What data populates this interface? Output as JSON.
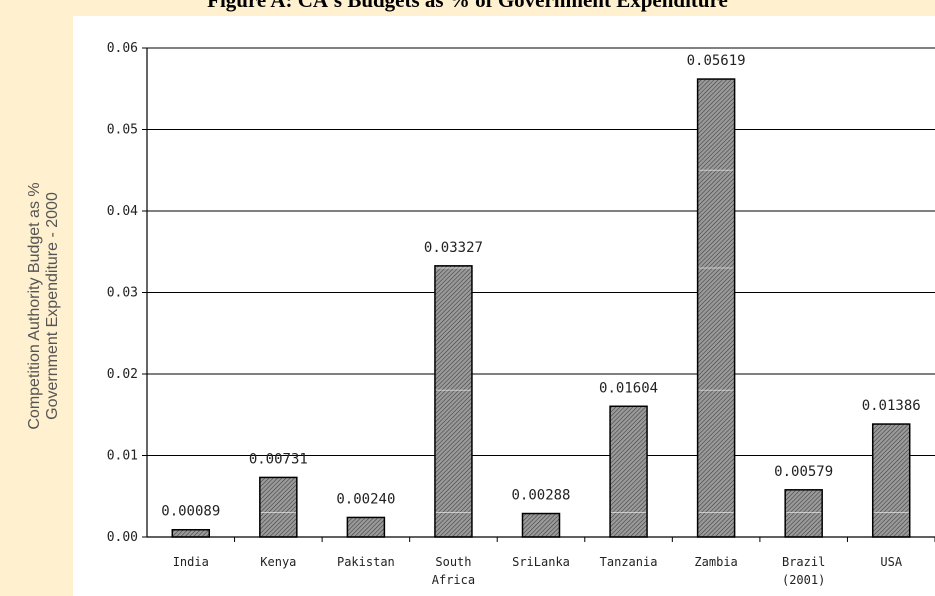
{
  "chart_data": {
    "type": "bar",
    "title": "Figure A: CA's Budgets as % of Government Expenditure",
    "ylabel_lines": [
      "Competition Authority Budget as %",
      "Government Expenditure - 2000"
    ],
    "xlabel": "",
    "categories": [
      [
        "India"
      ],
      [
        "Kenya"
      ],
      [
        "Pakistan"
      ],
      [
        "South",
        "Africa"
      ],
      [
        "SriLanka"
      ],
      [
        "Tanzania"
      ],
      [
        "Zambia"
      ],
      [
        "Brazil",
        "(2001)"
      ],
      [
        "USA"
      ]
    ],
    "values": [
      0.00089,
      0.00731,
      0.0024,
      0.03327,
      0.00288,
      0.01604,
      0.05619,
      0.00579,
      0.01386
    ],
    "data_labels": [
      "0.00089",
      "0.00731",
      "0.00240",
      "0.03327",
      "0.00288",
      "0.01604",
      "0.05619",
      "0.00579",
      "0.01386"
    ],
    "yticks": [
      "0.00",
      "0.01",
      "0.02",
      "0.03",
      "0.04",
      "0.05",
      "0.06"
    ],
    "ylim": [
      0,
      0.06
    ],
    "grid": true,
    "bar_pattern": "diagonal-hatch",
    "colors": {
      "background": "#FFF1D0",
      "plot": "#FFFFFF",
      "bar_fill": "#8C8C8C",
      "bar_stroke": "#000000"
    }
  }
}
